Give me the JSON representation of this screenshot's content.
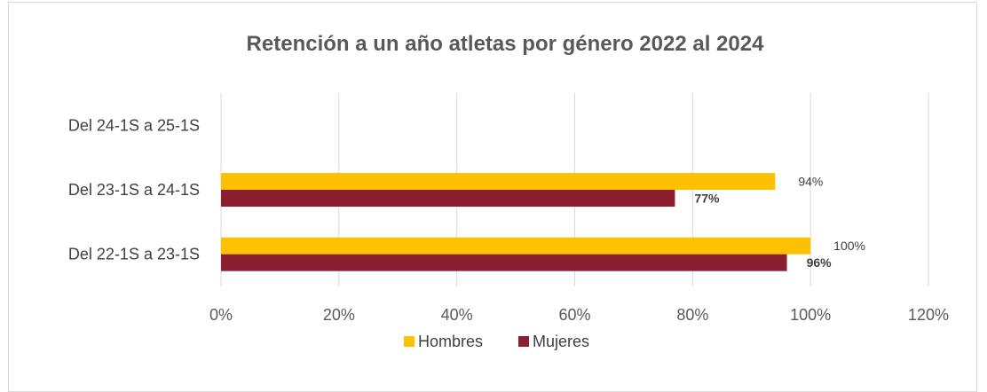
{
  "chart_data": {
    "type": "bar",
    "orientation": "horizontal",
    "title": "Retención a un año atletas por género 2022 al 2024",
    "categories": [
      "Del 22-1S a 23-1S",
      "Del 23-1S a 24-1S",
      "Del 24-1S a 25-1S"
    ],
    "series": [
      {
        "name": "Hombres",
        "color": "#FFC000",
        "values": [
          100,
          94,
          null
        ],
        "labels": [
          "100%",
          "94%",
          ""
        ]
      },
      {
        "name": "Mujeres",
        "color": "#8B1E2F",
        "values": [
          96,
          77,
          null
        ],
        "labels": [
          "96%",
          "77%",
          ""
        ]
      }
    ],
    "x_ticks": [
      "0%",
      "20%",
      "40%",
      "60%",
      "80%",
      "100%",
      "120%"
    ],
    "xlim": [
      0,
      120
    ],
    "grid": true,
    "legend": "bottom"
  }
}
